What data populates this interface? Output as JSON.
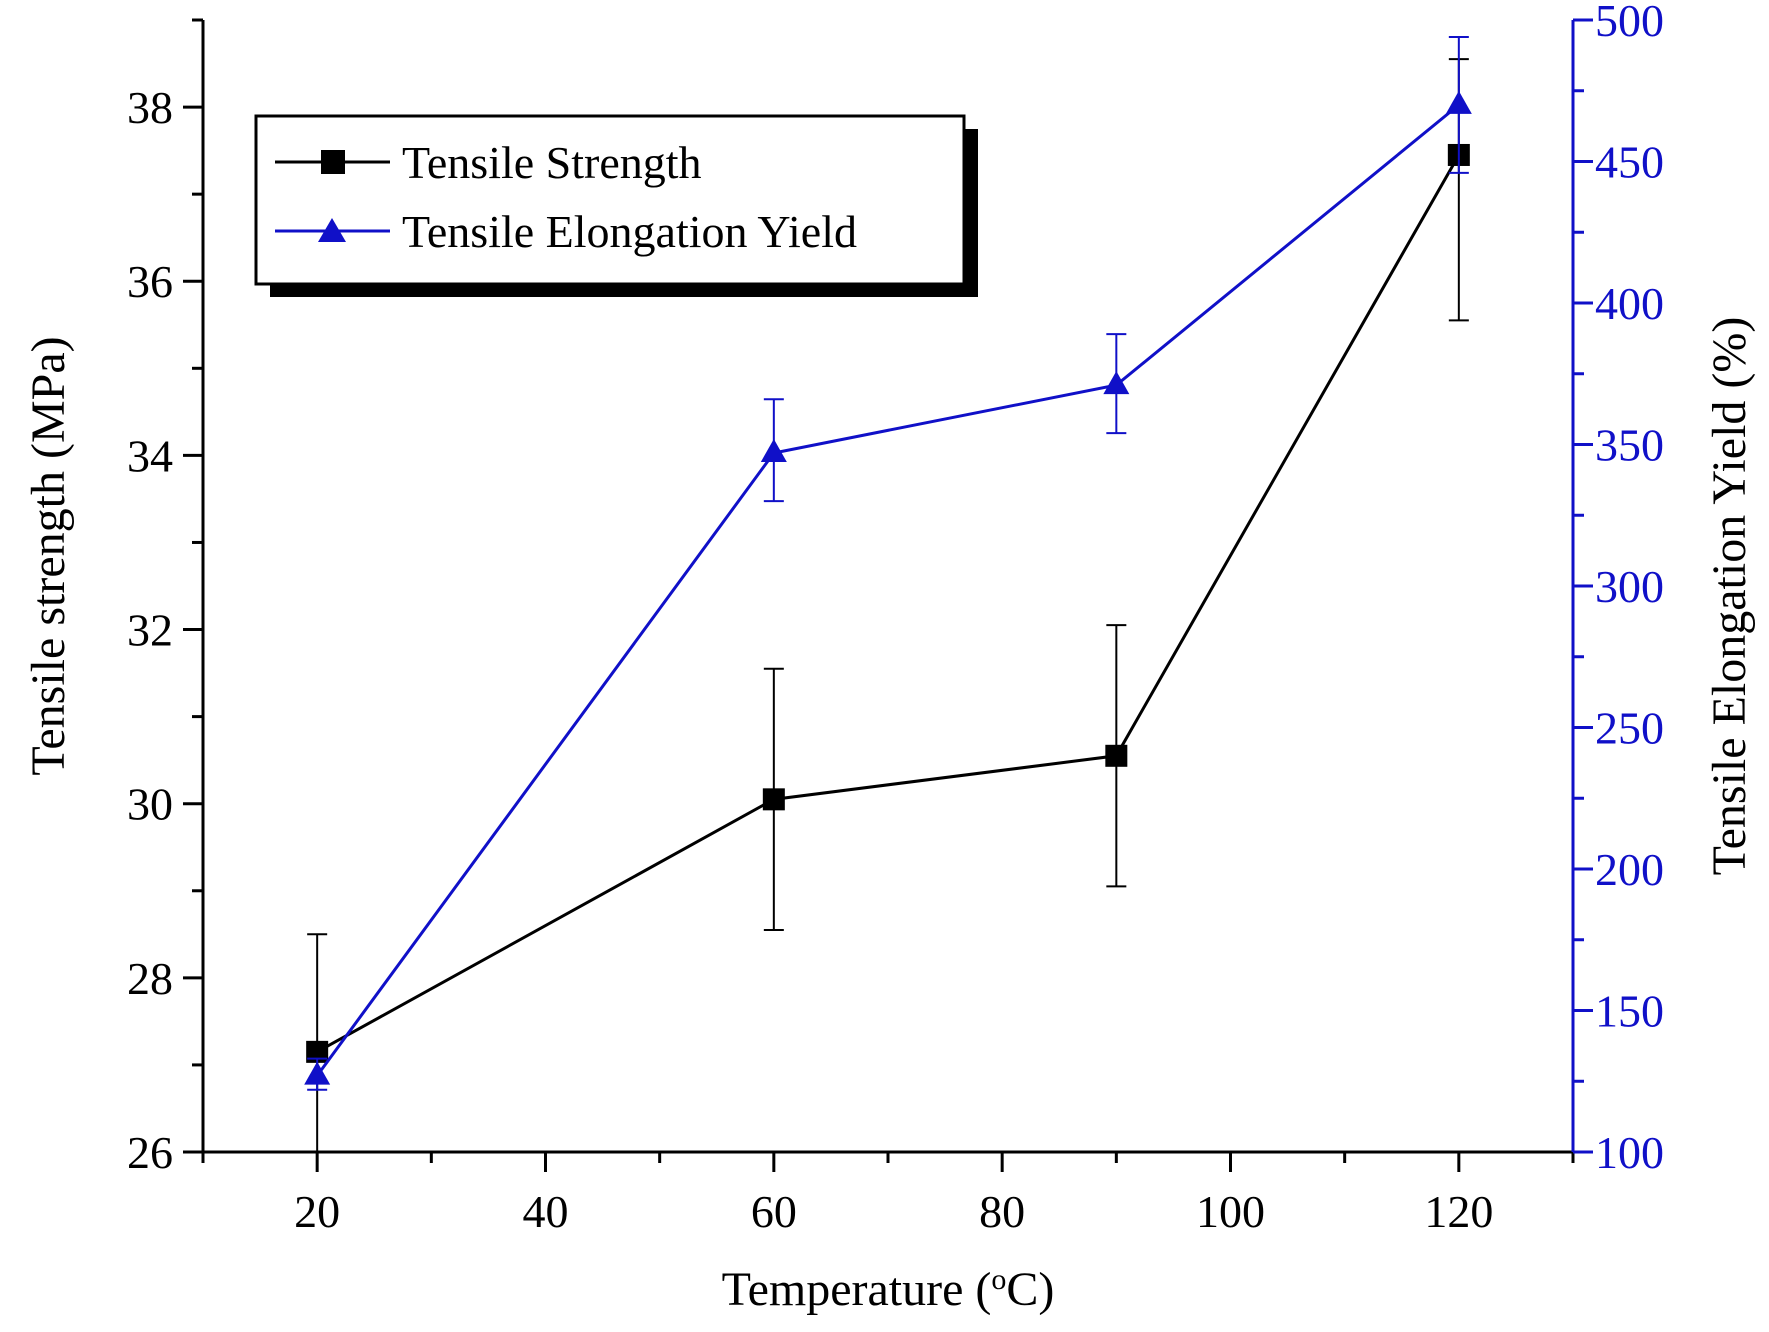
{
  "chart_data": {
    "type": "line",
    "title": "",
    "xlabel": "Temperature (oC)",
    "xlabel_main": "Temperature (",
    "xlabel_sup": "o",
    "xlabel_end": "C)",
    "ylabel_left": "Tensile strength (MPa)",
    "ylabel_right": "Tensile Elongation Yield (%)",
    "xlim": [
      10,
      130
    ],
    "ylim_left": [
      26,
      39
    ],
    "ylim_right": [
      100,
      500
    ],
    "x_ticks": [
      20,
      40,
      60,
      80,
      100,
      120
    ],
    "x_tick_labels": [
      "20",
      "40",
      "60",
      "80",
      "100",
      "120"
    ],
    "y_left_ticks": [
      26,
      28,
      30,
      32,
      34,
      36,
      38
    ],
    "y_left_tick_labels": [
      "26",
      "28",
      "30",
      "32",
      "34",
      "36",
      "38"
    ],
    "y_right_ticks": [
      100,
      150,
      200,
      250,
      300,
      350,
      400,
      450,
      500
    ],
    "y_right_tick_labels": [
      "100",
      "150",
      "200",
      "250",
      "300",
      "350",
      "400",
      "450",
      "500"
    ],
    "grid": false,
    "legend_position": "top-left",
    "series": [
      {
        "name": "Tensile Strength",
        "axis": "left",
        "color": "#000000",
        "marker": "square",
        "x": [
          20,
          60,
          90,
          120
        ],
        "values": [
          27.15,
          30.05,
          30.55,
          37.45
        ],
        "error_low": [
          26.0,
          28.55,
          29.05,
          35.55
        ],
        "error_high": [
          28.5,
          31.55,
          32.05,
          38.55
        ]
      },
      {
        "name": "Tensile Elongation Yield",
        "axis": "right",
        "color": "#1010c8",
        "marker": "triangle",
        "x": [
          20,
          60,
          90,
          120
        ],
        "values": [
          127,
          347,
          371,
          470
        ],
        "error_low": [
          122,
          330,
          354,
          446
        ],
        "error_high": [
          133,
          366,
          389,
          494
        ]
      }
    ]
  }
}
